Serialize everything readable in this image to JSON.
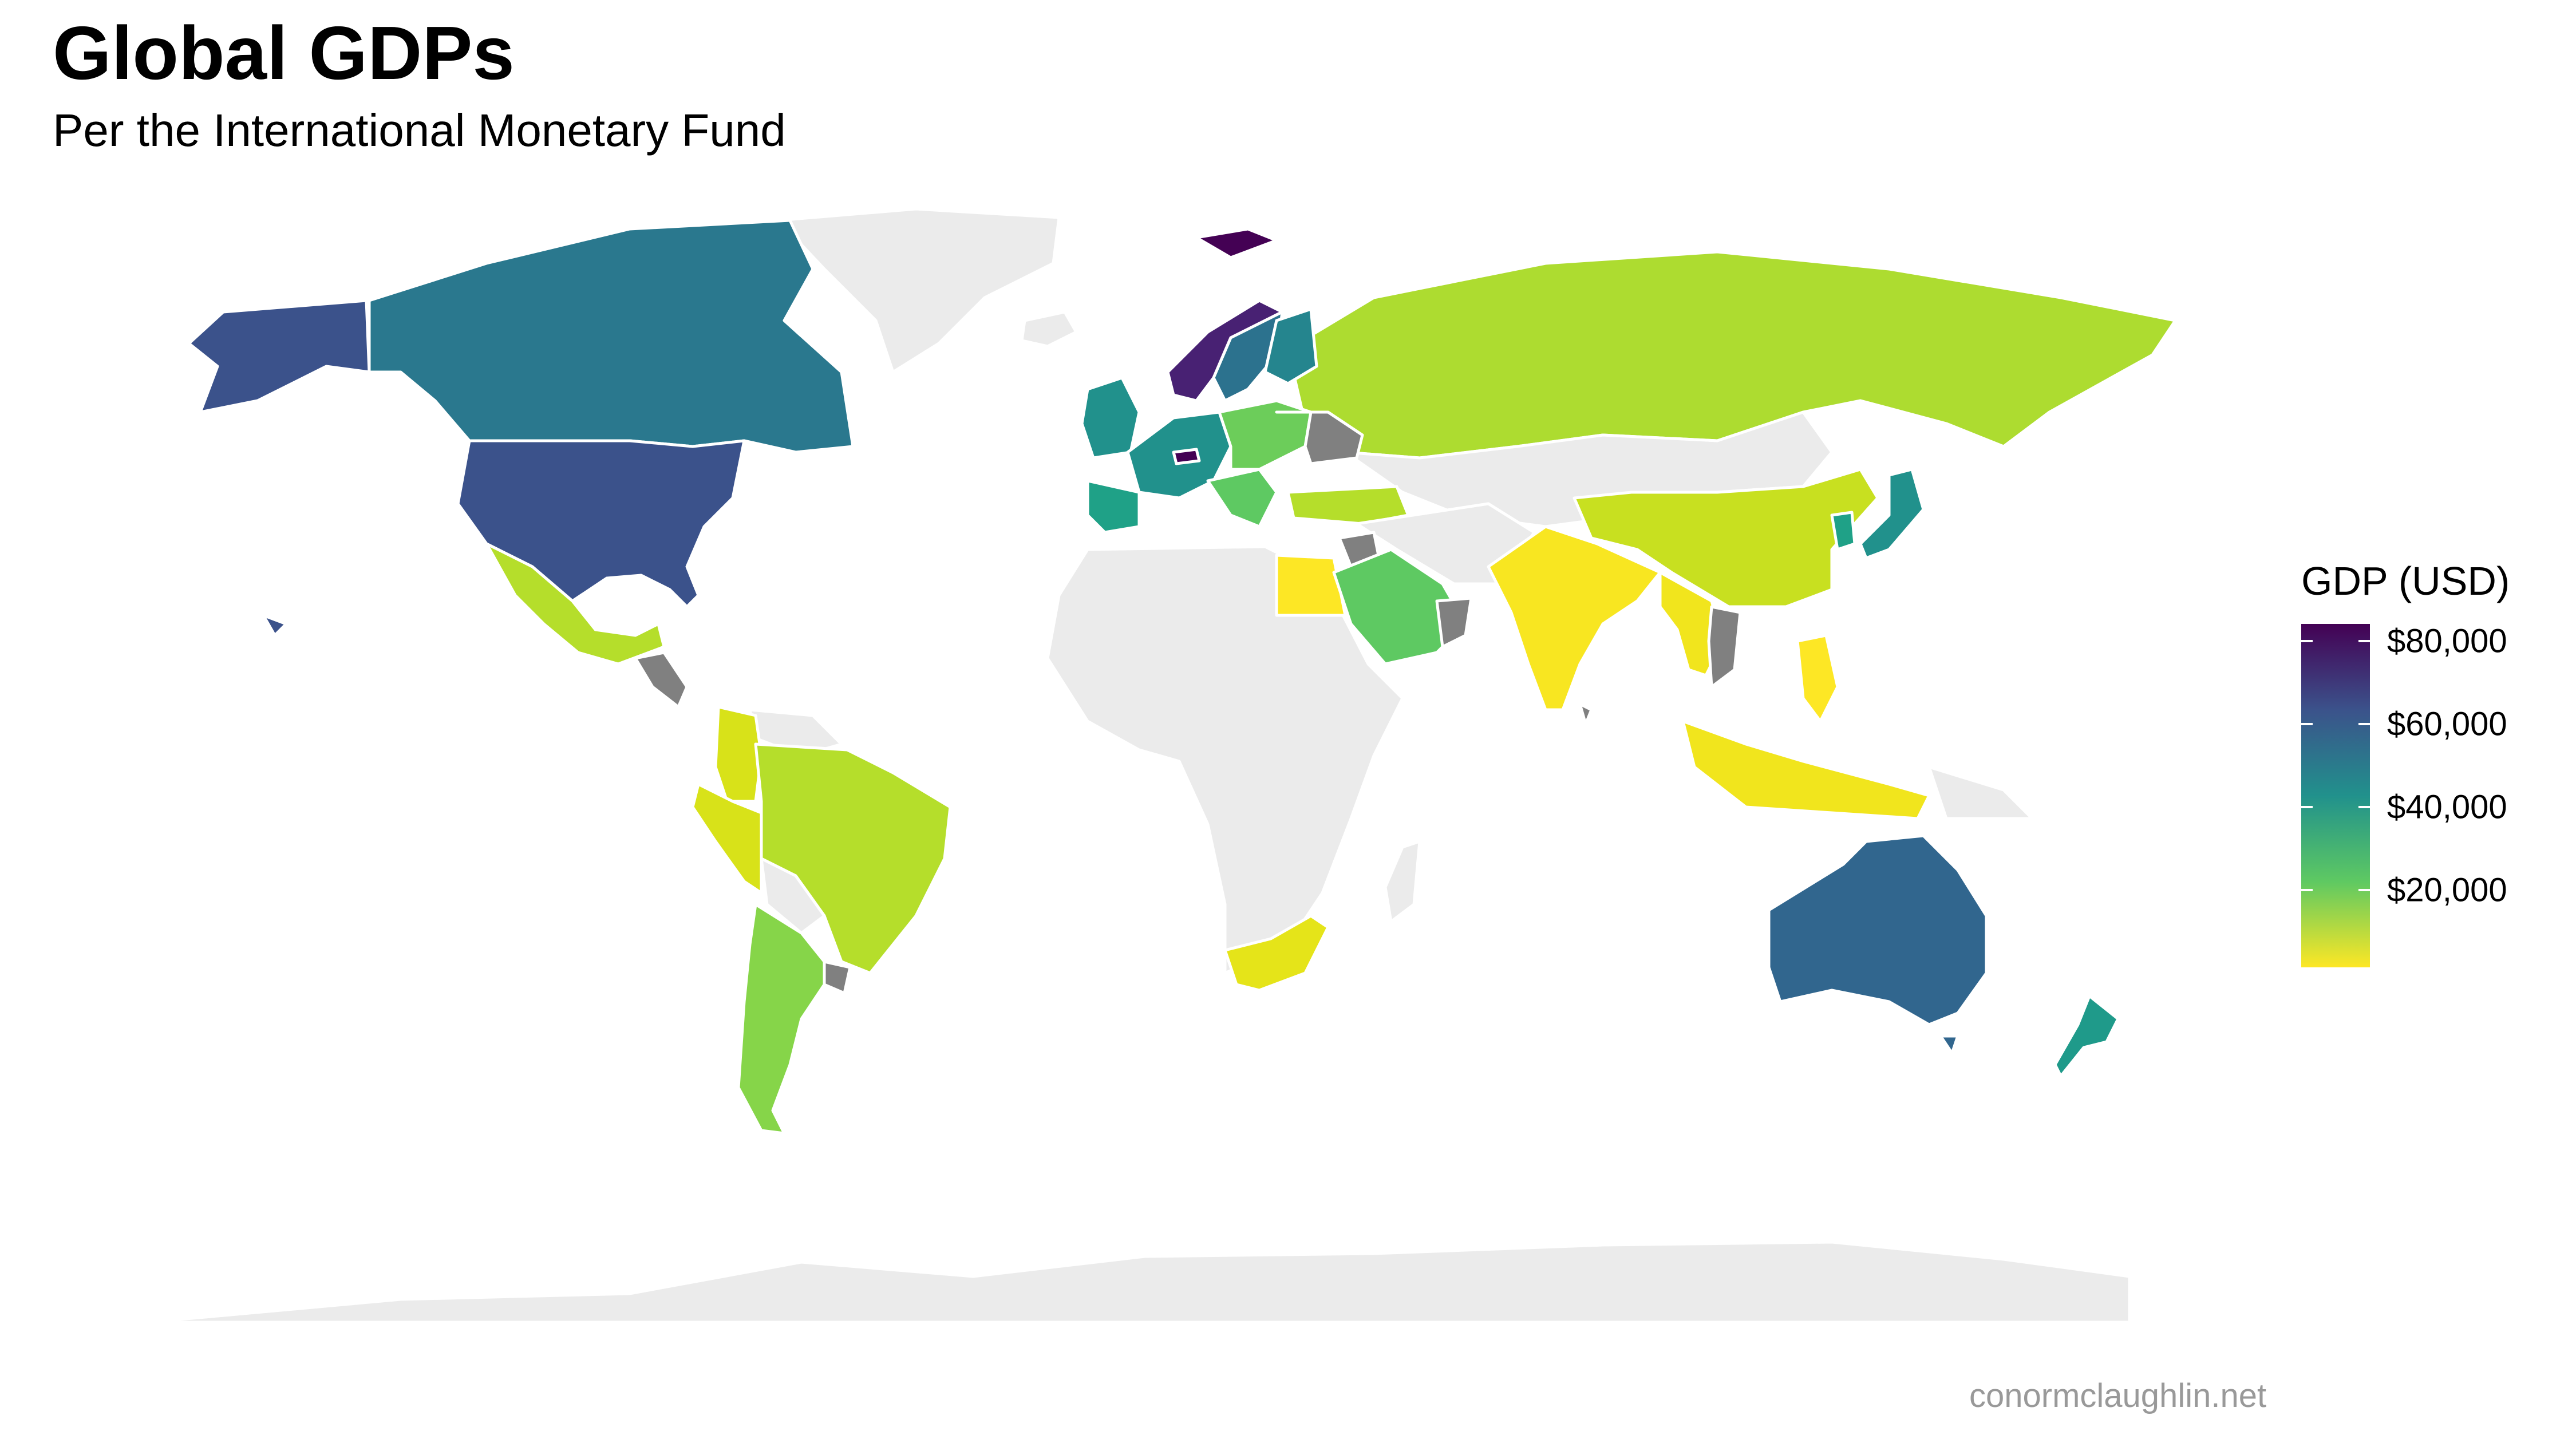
{
  "title": "Global GDPs",
  "subtitle": "Per the International Monetary Fund",
  "caption": "conormclaughlin.net",
  "legend": {
    "title": "GDP (USD)",
    "ticks": [
      "$80,000",
      "$60,000",
      "$40,000",
      "$20,000"
    ],
    "scale": [
      "#440154",
      "#3b528b",
      "#21918c",
      "#5ec962",
      "#fde725"
    ],
    "no_data_color": "#ebebeb",
    "missing_color": "#808080"
  },
  "chart_data": {
    "type": "choropleth",
    "title": "Global GDPs",
    "subtitle": "Per the International Monetary Fund",
    "legend_title": "GDP (USD)",
    "legend_ticks": [
      80000,
      60000,
      40000,
      20000
    ],
    "legend_placement": "right",
    "colormap": "viridis (reversed: high = dark purple, low = yellow)",
    "regions": [
      {
        "region": "Alaska / USA",
        "color": "#3b528b"
      },
      {
        "region": "Canada",
        "color": "#2a788e"
      },
      {
        "region": "Greenland",
        "color": "#ebebeb"
      },
      {
        "region": "Mexico",
        "color": "#b5de2b"
      },
      {
        "region": "Colombia",
        "color": "#d8e219"
      },
      {
        "region": "Peru",
        "color": "#d8e219"
      },
      {
        "region": "Brazil",
        "color": "#b5de2b"
      },
      {
        "region": "Argentina",
        "color": "#86d549"
      },
      {
        "region": "Iceland",
        "color": "#ebebeb"
      },
      {
        "region": "Svalbard / Norway",
        "color": "#440154"
      },
      {
        "region": "Norway",
        "color": "#482173"
      },
      {
        "region": "Sweden",
        "color": "#2c728e"
      },
      {
        "region": "Finland",
        "color": "#25858e"
      },
      {
        "region": "United Kingdom / Ireland",
        "color": "#21918c"
      },
      {
        "region": "France / Germany",
        "color": "#21918c"
      },
      {
        "region": "Spain / Portugal",
        "color": "#1fa187"
      },
      {
        "region": "Switzerland",
        "color": "#440154"
      },
      {
        "region": "Poland / Central Europe",
        "color": "#6ccd5a"
      },
      {
        "region": "Ukraine / Belarus",
        "color": "#808080"
      },
      {
        "region": "Turkey",
        "color": "#b5de2b"
      },
      {
        "region": "Russia",
        "color": "#addc30"
      },
      {
        "region": "Kazakhstan / Mongolia",
        "color": "#ebebeb"
      },
      {
        "region": "China",
        "color": "#c8e020"
      },
      {
        "region": "Japan",
        "color": "#21918c"
      },
      {
        "region": "South Korea",
        "color": "#1fa187"
      },
      {
        "region": "India",
        "color": "#f8e621"
      },
      {
        "region": "Saudi Arabia",
        "color": "#5ec962"
      },
      {
        "region": "Egypt",
        "color": "#fde725"
      },
      {
        "region": "Iran",
        "color": "#ebebeb"
      },
      {
        "region": "Southeast Asia",
        "color": "#f1e51d"
      },
      {
        "region": "Indonesia",
        "color": "#f1e51d"
      },
      {
        "region": "Philippines",
        "color": "#fde725"
      },
      {
        "region": "Africa",
        "color": "#ebebeb"
      },
      {
        "region": "South Africa",
        "color": "#e5e419"
      },
      {
        "region": "Australia",
        "color": "#31668e"
      },
      {
        "region": "New Zealand",
        "color": "#1f9a8a"
      },
      {
        "region": "Antarctica",
        "color": "#ebebeb"
      }
    ]
  }
}
